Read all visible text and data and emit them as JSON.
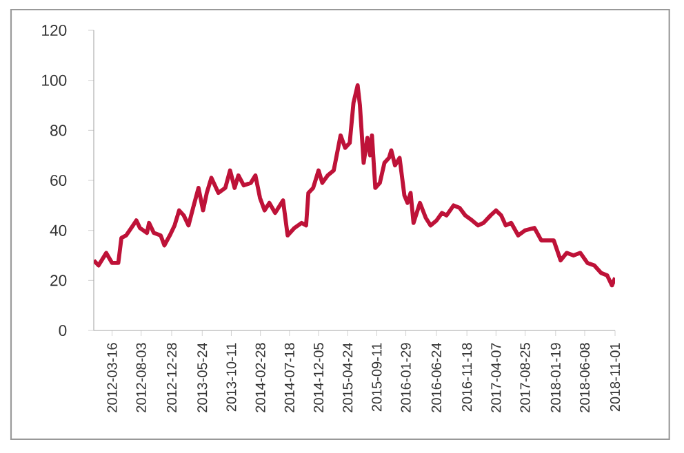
{
  "chart_data": {
    "type": "line",
    "x": [
      "2011-12-19",
      "2012-01-11",
      "2012-02-17",
      "2012-03-16",
      "2012-04-15",
      "2012-04-30",
      "2012-05-23",
      "2012-06-25",
      "2012-07-11",
      "2012-07-28",
      "2012-08-31",
      "2012-09-10",
      "2012-10-03",
      "2012-11-05",
      "2012-11-23",
      "2012-12-19",
      "2013-01-11",
      "2013-02-02",
      "2013-02-24",
      "2013-03-19",
      "2013-04-10",
      "2013-05-06",
      "2013-05-28",
      "2013-06-15",
      "2013-07-07",
      "2013-08-10",
      "2013-09-12",
      "2013-10-05",
      "2013-10-27",
      "2013-11-14",
      "2013-12-10",
      "2014-01-13",
      "2014-02-04",
      "2014-02-26",
      "2014-03-20",
      "2014-04-12",
      "2014-05-10",
      "2014-06-17",
      "2014-07-09",
      "2014-08-11",
      "2014-09-14",
      "2014-10-06",
      "2014-10-17",
      "2014-11-09",
      "2014-12-05",
      "2014-12-23",
      "2015-01-18",
      "2015-02-16",
      "2015-03-21",
      "2015-04-12",
      "2015-05-04",
      "2015-05-22",
      "2015-06-11",
      "2015-06-22",
      "2015-07-10",
      "2015-07-28",
      "2015-08-10",
      "2015-08-19",
      "2015-09-04",
      "2015-09-26",
      "2015-10-18",
      "2015-11-09",
      "2015-11-20",
      "2015-12-08",
      "2015-12-30",
      "2016-01-22",
      "2016-02-06",
      "2016-02-21",
      "2016-03-06",
      "2016-04-06",
      "2016-05-04",
      "2016-05-27",
      "2016-06-25",
      "2016-07-21",
      "2016-08-12",
      "2016-09-15",
      "2016-10-14",
      "2016-11-10",
      "2016-12-13",
      "2017-01-11",
      "2017-02-06",
      "2017-03-12",
      "2017-04-07",
      "2017-05-02",
      "2017-05-24",
      "2017-06-19",
      "2017-07-23",
      "2017-08-25",
      "2017-10-09",
      "2017-11-11",
      "2017-12-14",
      "2018-01-10",
      "2018-02-12",
      "2018-03-13",
      "2018-04-15",
      "2018-05-18",
      "2018-06-21",
      "2018-07-24",
      "2018-08-26",
      "2018-09-24",
      "2018-10-17",
      "2018-11-01"
    ],
    "series": [
      {
        "color": "#be1238",
        "values": [
          28,
          26,
          31,
          27,
          27,
          37,
          38,
          42,
          44,
          41,
          39,
          43,
          39,
          38,
          34,
          38,
          42,
          48,
          46,
          42,
          49,
          57,
          48,
          55,
          61,
          55,
          57,
          64,
          57,
          62,
          58,
          59,
          62,
          53,
          48,
          51,
          47,
          52,
          38,
          41,
          43,
          42,
          55,
          57,
          64,
          59,
          62,
          64,
          78,
          73,
          75,
          91,
          98,
          90,
          67,
          77,
          70,
          78,
          57,
          59,
          67,
          69,
          72,
          66,
          69,
          54,
          51,
          55,
          43,
          51,
          45,
          42,
          44,
          47,
          46,
          50,
          49,
          46,
          44,
          42,
          43,
          46,
          48,
          46,
          42,
          43,
          38,
          40,
          41,
          36,
          36,
          36,
          28,
          31,
          30,
          31,
          27,
          26,
          23,
          22,
          18,
          21
        ]
      }
    ],
    "xlim": [
      "2011-12-19",
      "2018-11-01"
    ],
    "xticks": [
      "2012-03-16",
      "2012-08-03",
      "2012-12-28",
      "2013-05-24",
      "2013-10-11",
      "2014-02-28",
      "2014-07-18",
      "2014-12-05",
      "2015-04-24",
      "2015-09-11",
      "2016-01-29",
      "2016-06-24",
      "2016-11-18",
      "2017-04-07",
      "2017-08-25",
      "2018-01-19",
      "2018-06-08",
      "2018-11-01"
    ],
    "ylim": [
      0,
      120
    ],
    "yticks": [
      0,
      20,
      40,
      60,
      80,
      100,
      120
    ],
    "grid": false,
    "legend": false,
    "marker": "none",
    "line_style": "solid"
  }
}
